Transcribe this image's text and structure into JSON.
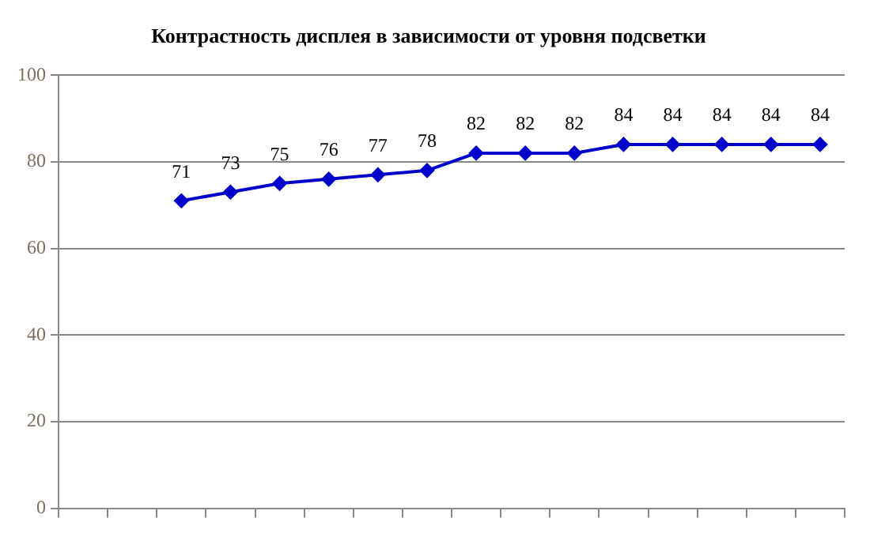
{
  "chart_data": {
    "type": "line",
    "title": "Контрастность дисплея в зависимости от уровня подсветки",
    "categories": [
      null,
      null,
      null,
      null,
      null,
      null,
      null,
      null,
      null,
      null,
      null,
      null,
      null,
      null,
      null,
      null
    ],
    "values": [
      null,
      null,
      71,
      73,
      75,
      76,
      77,
      78,
      82,
      82,
      82,
      84,
      84,
      84,
      84,
      84
    ],
    "color": "#0000cc",
    "marker": "diamond",
    "data_labels": true,
    "ylim": [
      0,
      100
    ],
    "yticks": [
      0,
      20,
      40,
      60,
      80,
      100
    ],
    "grid": "y",
    "tick_labels": "y",
    "legend": false
  }
}
